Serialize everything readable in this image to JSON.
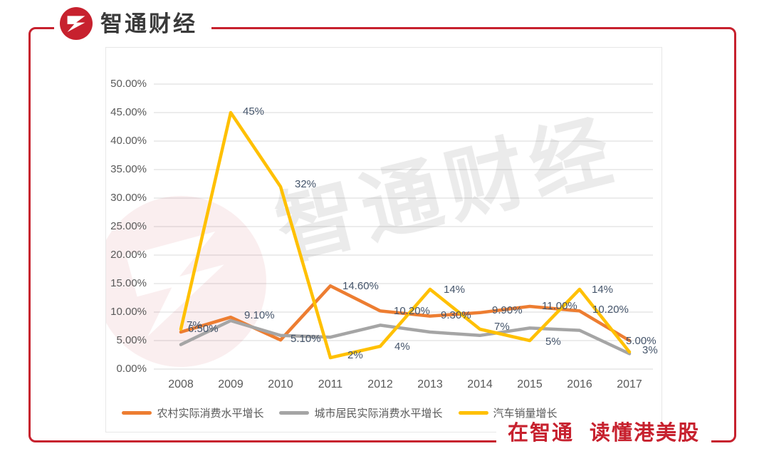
{
  "brand": {
    "logo_text": "智通财经",
    "slogan": "在智通 读懂港美股",
    "red": "#C7212E"
  },
  "watermark": {
    "text": "智通财经"
  },
  "chart_data": {
    "type": "line",
    "title": "",
    "categories": [
      "2008",
      "2009",
      "2010",
      "2011",
      "2012",
      "2013",
      "2014",
      "2015",
      "2016",
      "2017"
    ],
    "series": [
      {
        "name": "农村实际消费水平增长",
        "color": "#ED7D31",
        "values": [
          6.5,
          9.1,
          5.1,
          14.6,
          10.2,
          9.3,
          9.9,
          11.0,
          10.2,
          5.0
        ],
        "labels": [
          "6.50%",
          "9.10%",
          "5.10%",
          "14.60%",
          "10.20%",
          "9.30%",
          "9.90%",
          "11.00%",
          "10.20%",
          "5.00%"
        ],
        "label_offsets": [
          [
            10,
            -12
          ],
          [
            19,
            -10
          ],
          [
            14,
            -9
          ],
          [
            17,
            -7
          ],
          [
            19,
            -7
          ],
          [
            15,
            -9
          ],
          [
            17,
            -11
          ],
          [
            17,
            -8
          ],
          [
            18,
            -9
          ],
          [
            -5,
            -7
          ]
        ]
      },
      {
        "name": "城市居民实际消费水平增长",
        "color": "#A5A5A5",
        "values": [
          4.3,
          8.5,
          5.9,
          5.6,
          7.7,
          6.5,
          5.9,
          7.2,
          6.8,
          2.7
        ],
        "labels": null,
        "label_offsets": null
      },
      {
        "name": "汽车销量增长",
        "color": "#FFC000",
        "values": [
          7,
          45,
          32,
          2,
          4,
          14,
          7,
          5,
          14,
          3
        ],
        "labels": [
          "7%",
          "45%",
          "32%",
          "2%",
          "4%",
          "14%",
          "7%",
          "5%",
          "14%",
          "3%"
        ],
        "label_offsets": [
          [
            8,
            -13
          ],
          [
            17,
            -9
          ],
          [
            20,
            -11
          ],
          [
            24,
            -11
          ],
          [
            20,
            -7
          ],
          [
            19,
            -7
          ],
          [
            20,
            -11
          ],
          [
            22,
            -6
          ],
          [
            17,
            -7
          ],
          [
            18,
            -10
          ]
        ]
      }
    ],
    "ylim": [
      0,
      50
    ],
    "ytick_step": 5,
    "yticks": [
      "0.00%",
      "5.00%",
      "10.00%",
      "15.00%",
      "20.00%",
      "25.00%",
      "30.00%",
      "35.00%",
      "40.00%",
      "45.00%",
      "50.00%"
    ],
    "grid": true,
    "legend_position": "bottom",
    "axis_color": "#595959",
    "grid_color": "#D9D9D9",
    "label_color": "#44546A"
  }
}
